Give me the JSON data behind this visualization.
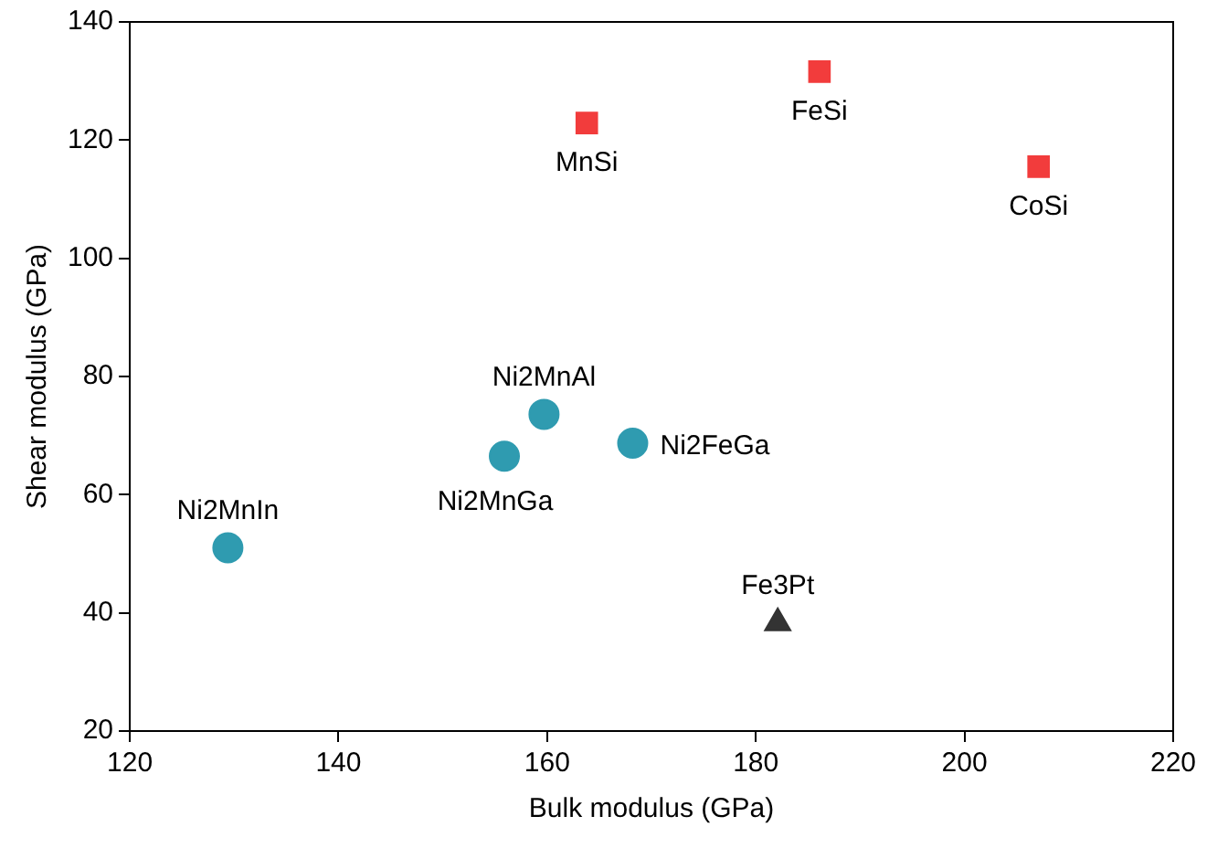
{
  "chart_data": {
    "type": "scatter",
    "xlabel": "Bulk modulus (GPa)",
    "ylabel": "Shear modulus (GPa)",
    "xlim": [
      120,
      220
    ],
    "xticks": [
      120,
      140,
      160,
      180,
      200,
      220
    ],
    "ylim": [
      20,
      140
    ],
    "yticks": [
      20,
      40,
      60,
      80,
      100,
      120,
      140
    ],
    "grid": false,
    "legend": false,
    "series": [
      {
        "color": "#f23c3c",
        "marker": "square",
        "x": [
          163.8,
          186.1,
          207.1
        ],
        "values": [
          122.9,
          131.6,
          115.5
        ]
      },
      {
        "color": "#2f9bb0",
        "marker": "circle",
        "x": [
          159.7,
          155.9,
          168.2,
          129.4
        ],
        "values": [
          73.6,
          66.5,
          68.7,
          51
        ]
      },
      {
        "color": "#333333",
        "marker": "triangle",
        "x": [
          182.1
        ],
        "values": [
          38.3
        ]
      }
    ],
    "annotations": [
      {
        "text": "MnSi",
        "x": 163.8,
        "y": 122.9
      },
      {
        "text": "FeSi",
        "x": 186.1,
        "y": 131.6
      },
      {
        "text": "CoSi",
        "x": 207.1,
        "y": 115.5
      },
      {
        "text": "Ni2MnAl",
        "x": 159.7,
        "y": 73.6
      },
      {
        "text": "Ni2MnGa",
        "x": 155.9,
        "y": 66.5
      },
      {
        "text": "Ni2FeGa",
        "x": 168.2,
        "y": 68.7
      },
      {
        "text": "Ni2MnIn",
        "x": 129.4,
        "y": 51
      },
      {
        "text": "Fe3Pt",
        "x": 182.1,
        "y": 38.3
      }
    ]
  }
}
